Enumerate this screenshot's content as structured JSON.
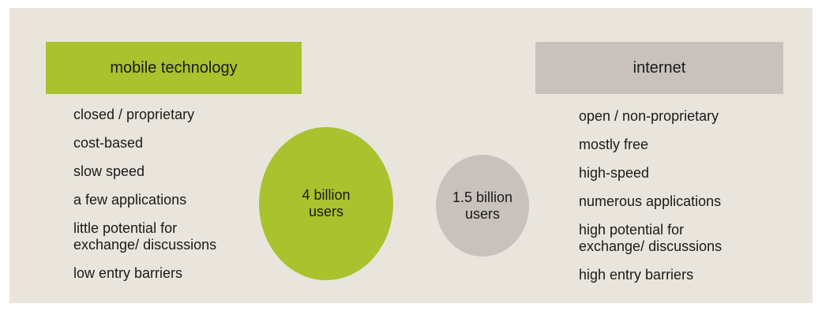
{
  "colors": {
    "background": "#e9e5dd",
    "mobile_accent": "#a9c22d",
    "internet_accent": "#c8c1bc"
  },
  "mobile": {
    "header": "mobile technology",
    "traits": [
      "closed / proprietary",
      "cost-based",
      "slow speed",
      "a few applications",
      "little potential for\nexchange/ discussions",
      "low entry barriers"
    ],
    "circle_label": "4 billion\nusers"
  },
  "internet": {
    "header": "internet",
    "traits": [
      "open / non-proprietary",
      "mostly free",
      "high-speed",
      "numerous applications",
      "high potential for\nexchange/ discussions",
      "high entry barriers"
    ],
    "circle_label": "1.5 billion\nusers"
  }
}
